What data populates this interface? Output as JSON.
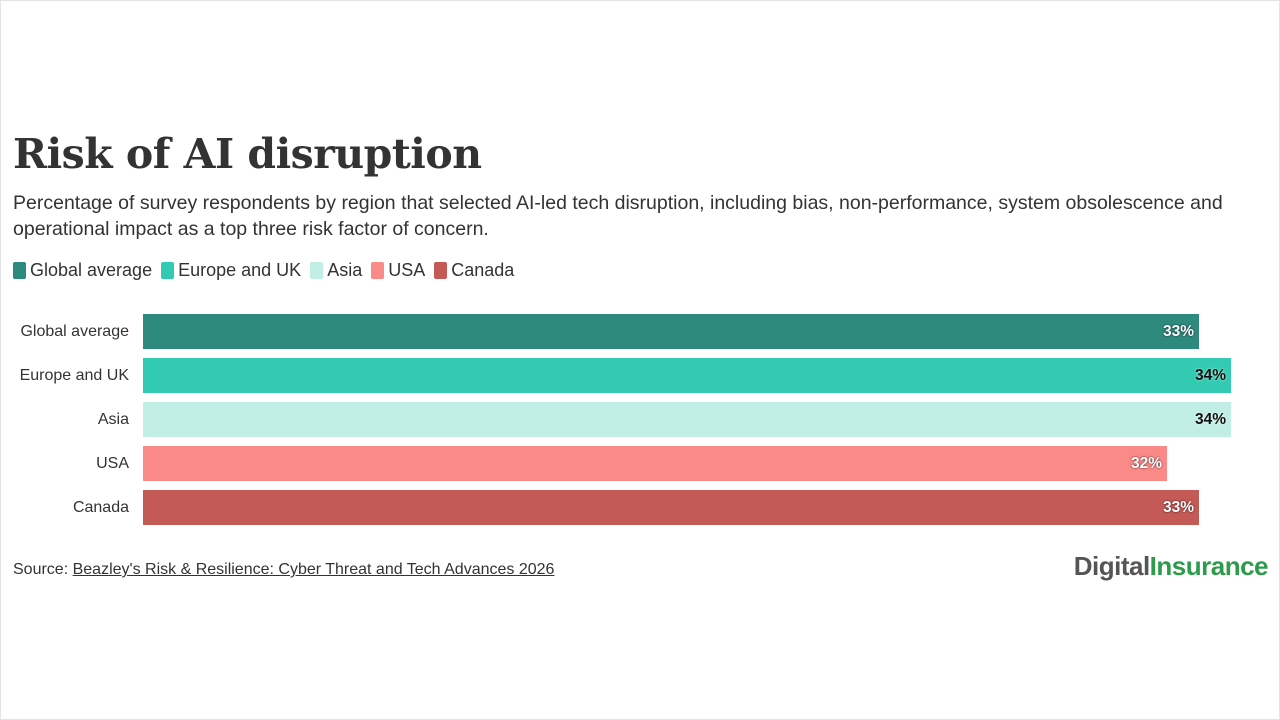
{
  "chart_data": {
    "type": "bar",
    "orientation": "horizontal",
    "title": "Risk of AI disruption",
    "subtitle": "Percentage of survey respondents by region that selected AI-led tech disruption, including bias, non-performance, system obsolescence and operational impact as a top three risk factor of concern.",
    "categories": [
      "Global average",
      "Europe and UK",
      "Asia",
      "USA",
      "Canada"
    ],
    "values": [
      33,
      34,
      34,
      32,
      33
    ],
    "value_labels": [
      "33%",
      "34%",
      "34%",
      "32%",
      "33%"
    ],
    "unit": "%",
    "colors": [
      "#2f8a7e",
      "#32cbb1",
      "#c2efe5",
      "#fa8a87",
      "#c45a56"
    ],
    "legend": [
      "Global average",
      "Europe and UK",
      "Asia",
      "USA",
      "Canada"
    ],
    "legend_position": "top-left",
    "xlim": [
      0,
      34
    ],
    "grid": false
  },
  "source": {
    "prefix": "Source: ",
    "link_text": "Beazley's Risk & Resilience: Cyber Threat and Tech Advances 2026"
  },
  "logo": {
    "part1": "Digital",
    "part2": "Insurance",
    "colors": [
      "#555555",
      "#2e9a4c"
    ]
  }
}
